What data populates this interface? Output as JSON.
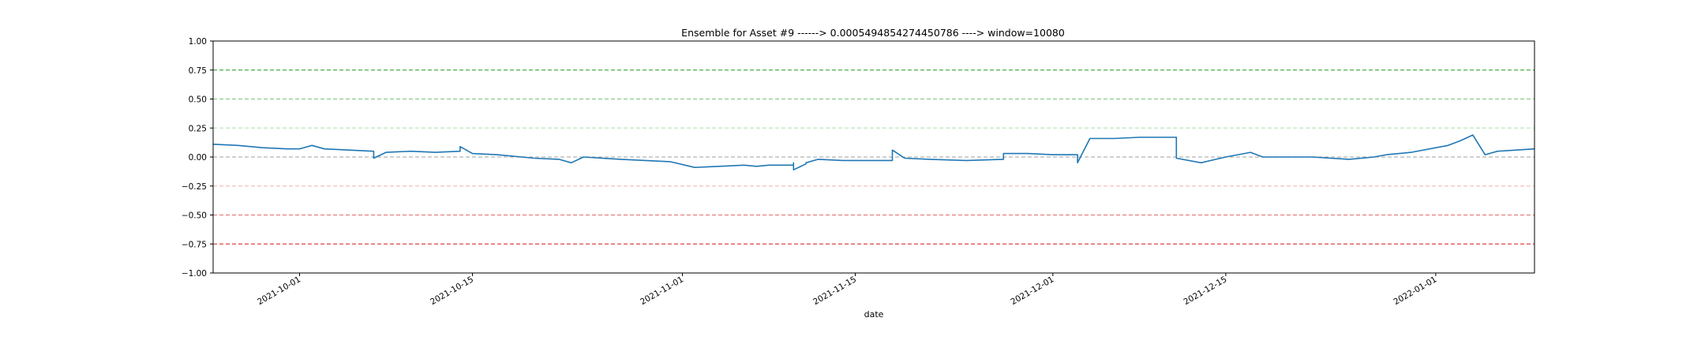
{
  "chart_data": {
    "type": "line",
    "title": "Ensemble for Asset #9 ------> 0.0005494854274450786 ----> window=10080",
    "xlabel": "date",
    "ylabel": "",
    "ylim": [
      -1.0,
      1.0
    ],
    "xlim": [
      "2021-09-24",
      "2022-01-09"
    ],
    "yticks": [
      "1.00",
      "0.75",
      "0.50",
      "0.25",
      "0.00",
      "−0.25",
      "−0.50",
      "−0.75",
      "−1.00"
    ],
    "ytick_values": [
      1.0,
      0.75,
      0.5,
      0.25,
      0.0,
      -0.25,
      -0.5,
      -0.75,
      -1.0
    ],
    "xticks": [
      "2021-10-01",
      "2021-10-15",
      "2021-11-01",
      "2021-11-15",
      "2021-12-01",
      "2021-12-15",
      "2022-01-01"
    ],
    "grid": false,
    "reference_lines": [
      {
        "y": 0.75,
        "color": "#2ca02c",
        "style": "dashed",
        "opacity": 0.85
      },
      {
        "y": 0.5,
        "color": "#2ca02c",
        "style": "dashed",
        "opacity": 0.55
      },
      {
        "y": 0.25,
        "color": "#2ca02c",
        "style": "dashed",
        "opacity": 0.3
      },
      {
        "y": 0.0,
        "color": "#7f7f7f",
        "style": "dashed",
        "opacity": 0.6
      },
      {
        "y": -0.25,
        "color": "#d62728",
        "style": "dashed",
        "opacity": 0.3
      },
      {
        "y": -0.5,
        "color": "#d62728",
        "style": "dashed",
        "opacity": 0.6
      },
      {
        "y": -0.75,
        "color": "#d62728",
        "style": "dashed",
        "opacity": 0.85
      }
    ],
    "series": [
      {
        "color": "#1f77b4",
        "x": [
          "2021-09-24",
          "2021-09-26",
          "2021-09-28",
          "2021-09-30",
          "2021-10-01",
          "2021-10-02",
          "2021-10-03",
          "2021-10-05",
          "2021-10-07",
          "2021-10-07",
          "2021-10-08",
          "2021-10-10",
          "2021-10-12",
          "2021-10-14",
          "2021-10-14",
          "2021-10-15",
          "2021-10-17",
          "2021-10-20",
          "2021-10-22",
          "2021-10-23",
          "2021-10-24",
          "2021-10-27",
          "2021-10-29",
          "2021-10-31",
          "2021-11-02",
          "2021-11-04",
          "2021-11-06",
          "2021-11-07",
          "2021-11-08",
          "2021-11-10",
          "2021-11-10",
          "2021-11-10",
          "2021-11-11",
          "2021-11-11",
          "2021-11-12",
          "2021-11-14",
          "2021-11-16",
          "2021-11-18",
          "2021-11-18",
          "2021-11-19",
          "2021-11-21",
          "2021-11-24",
          "2021-11-27",
          "2021-11-27",
          "2021-11-29",
          "2021-12-01",
          "2021-12-03",
          "2021-12-03",
          "2021-12-04",
          "2021-12-06",
          "2021-12-08",
          "2021-12-11",
          "2021-12-11",
          "2021-12-13",
          "2021-12-15",
          "2021-12-17",
          "2021-12-18",
          "2021-12-20",
          "2021-12-22",
          "2021-12-25",
          "2021-12-27",
          "2021-12-28",
          "2021-12-30",
          "2022-01-02",
          "2022-01-03",
          "2022-01-04",
          "2022-01-05",
          "2022-01-06",
          "2022-01-09"
        ],
        "y": [
          0.11,
          0.1,
          0.08,
          0.07,
          0.07,
          0.1,
          0.07,
          0.06,
          0.05,
          -0.01,
          0.04,
          0.05,
          0.04,
          0.05,
          0.09,
          0.03,
          0.02,
          -0.01,
          -0.02,
          -0.05,
          0.0,
          -0.02,
          -0.03,
          -0.04,
          -0.09,
          -0.08,
          -0.07,
          -0.08,
          -0.07,
          -0.07,
          -0.05,
          -0.11,
          -0.06,
          -0.05,
          -0.02,
          -0.03,
          -0.03,
          -0.03,
          0.06,
          -0.01,
          -0.02,
          -0.03,
          -0.02,
          0.03,
          0.03,
          0.02,
          0.02,
          -0.05,
          0.16,
          0.16,
          0.17,
          0.17,
          -0.01,
          -0.05,
          0.0,
          0.04,
          0.0,
          0.0,
          0.0,
          -0.02,
          0.0,
          0.02,
          0.04,
          0.1,
          0.14,
          0.19,
          0.02,
          0.05,
          0.07
        ]
      }
    ]
  }
}
